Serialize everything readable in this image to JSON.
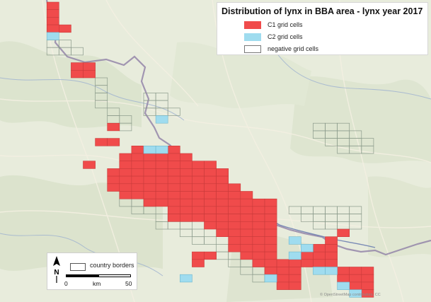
{
  "legend": {
    "title": "Distribution of lynx in BBA area - lynx year 2017",
    "items": [
      {
        "label": "C1 grid cells",
        "color": "#f04b4b"
      },
      {
        "label": "C2 grid cells",
        "color": "#9fdcef"
      },
      {
        "label": "negative grid cells",
        "color": "#ffffff"
      }
    ]
  },
  "map_labels": {
    "country_borders": "country borders",
    "scale_start": "0",
    "scale_unit": "km",
    "scale_end": "50",
    "north": "N",
    "attribution": "© OpenStreetMap contributors, CC"
  },
  "colors": {
    "c1": "#f04b4b",
    "c2": "#9fdcef",
    "negative_border": "#8a9a8a",
    "border_line": "#7a6f8f",
    "river": "#6d7fb0"
  },
  "grid": {
    "cell_size_note": "10x10 km grid cells",
    "c1_cells": [
      [
        2,
        0
      ],
      [
        2,
        1
      ],
      [
        2,
        2
      ],
      [
        2,
        3
      ],
      [
        3,
        3
      ],
      [
        4,
        8
      ],
      [
        5,
        8
      ],
      [
        4,
        9
      ],
      [
        5,
        9
      ],
      [
        7,
        16
      ],
      [
        6,
        18
      ],
      [
        7,
        18
      ],
      [
        5,
        21
      ],
      [
        9,
        19
      ],
      [
        10,
        19
      ],
      [
        11,
        19
      ],
      [
        12,
        19
      ],
      [
        8,
        20
      ],
      [
        9,
        20
      ],
      [
        10,
        20
      ],
      [
        11,
        20
      ],
      [
        12,
        20
      ],
      [
        13,
        20
      ],
      [
        8,
        21
      ],
      [
        9,
        21
      ],
      [
        10,
        21
      ],
      [
        11,
        21
      ],
      [
        12,
        21
      ],
      [
        13,
        21
      ],
      [
        14,
        21
      ],
      [
        15,
        21
      ],
      [
        7,
        22
      ],
      [
        8,
        22
      ],
      [
        9,
        22
      ],
      [
        10,
        22
      ],
      [
        11,
        22
      ],
      [
        12,
        22
      ],
      [
        13,
        22
      ],
      [
        14,
        22
      ],
      [
        15,
        22
      ],
      [
        16,
        22
      ],
      [
        7,
        23
      ],
      [
        8,
        23
      ],
      [
        9,
        23
      ],
      [
        10,
        23
      ],
      [
        11,
        23
      ],
      [
        12,
        23
      ],
      [
        13,
        23
      ],
      [
        14,
        23
      ],
      [
        15,
        23
      ],
      [
        16,
        23
      ],
      [
        7,
        24
      ],
      [
        8,
        24
      ],
      [
        9,
        24
      ],
      [
        10,
        24
      ],
      [
        11,
        24
      ],
      [
        12,
        24
      ],
      [
        13,
        24
      ],
      [
        14,
        24
      ],
      [
        15,
        24
      ],
      [
        16,
        24
      ],
      [
        17,
        24
      ],
      [
        8,
        25
      ],
      [
        9,
        25
      ],
      [
        10,
        25
      ],
      [
        11,
        25
      ],
      [
        12,
        25
      ],
      [
        13,
        25
      ],
      [
        14,
        25
      ],
      [
        15,
        25
      ],
      [
        16,
        25
      ],
      [
        17,
        25
      ],
      [
        18,
        25
      ],
      [
        10,
        26
      ],
      [
        11,
        26
      ],
      [
        12,
        26
      ],
      [
        13,
        26
      ],
      [
        14,
        26
      ],
      [
        15,
        26
      ],
      [
        16,
        26
      ],
      [
        17,
        26
      ],
      [
        18,
        26
      ],
      [
        19,
        26
      ],
      [
        20,
        26
      ],
      [
        12,
        27
      ],
      [
        13,
        27
      ],
      [
        14,
        27
      ],
      [
        15,
        27
      ],
      [
        16,
        27
      ],
      [
        17,
        27
      ],
      [
        18,
        27
      ],
      [
        19,
        27
      ],
      [
        20,
        27
      ],
      [
        12,
        28
      ],
      [
        13,
        28
      ],
      [
        14,
        28
      ],
      [
        15,
        28
      ],
      [
        16,
        28
      ],
      [
        17,
        28
      ],
      [
        18,
        28
      ],
      [
        19,
        28
      ],
      [
        20,
        28
      ],
      [
        15,
        29
      ],
      [
        16,
        29
      ],
      [
        17,
        29
      ],
      [
        18,
        29
      ],
      [
        19,
        29
      ],
      [
        20,
        29
      ],
      [
        16,
        30
      ],
      [
        17,
        30
      ],
      [
        18,
        30
      ],
      [
        19,
        30
      ],
      [
        20,
        30
      ],
      [
        17,
        31
      ],
      [
        18,
        31
      ],
      [
        19,
        31
      ],
      [
        20,
        31
      ],
      [
        17,
        32
      ],
      [
        18,
        32
      ],
      [
        19,
        32
      ],
      [
        20,
        32
      ],
      [
        18,
        33
      ],
      [
        19,
        33
      ],
      [
        20,
        33
      ],
      [
        14,
        33
      ],
      [
        15,
        33
      ],
      [
        14,
        34
      ],
      [
        19,
        34
      ],
      [
        20,
        34
      ],
      [
        20,
        35
      ],
      [
        21,
        34
      ],
      [
        21,
        35
      ],
      [
        21,
        36
      ],
      [
        21,
        37
      ],
      [
        22,
        34
      ],
      [
        22,
        35
      ],
      [
        22,
        36
      ],
      [
        22,
        37
      ],
      [
        23,
        33
      ],
      [
        24,
        33
      ],
      [
        25,
        33
      ],
      [
        23,
        34
      ],
      [
        24,
        34
      ],
      [
        25,
        34
      ],
      [
        24,
        32
      ],
      [
        25,
        32
      ],
      [
        25,
        31
      ],
      [
        26,
        30
      ],
      [
        26,
        35
      ],
      [
        27,
        35
      ],
      [
        28,
        35
      ],
      [
        26,
        36
      ],
      [
        27,
        36
      ],
      [
        28,
        36
      ],
      [
        27,
        37
      ],
      [
        28,
        37
      ],
      [
        28,
        38
      ]
    ],
    "c2_cells": [
      [
        2,
        4
      ],
      [
        11,
        15
      ],
      [
        10,
        19
      ],
      [
        11,
        19
      ],
      [
        22,
        31
      ],
      [
        23,
        32
      ],
      [
        22,
        33
      ],
      [
        20,
        36
      ],
      [
        24,
        35
      ],
      [
        25,
        35
      ],
      [
        26,
        37
      ],
      [
        27,
        38
      ],
      [
        13,
        36
      ]
    ],
    "negative_regions": [
      {
        "name": "north-border-strip",
        "cells": [
          [
            6,
            10
          ],
          [
            6,
            11
          ],
          [
            6,
            12
          ],
          [
            6,
            13
          ],
          [
            7,
            14
          ],
          [
            7,
            15
          ],
          [
            8,
            15
          ],
          [
            8,
            16
          ]
        ]
      },
      {
        "name": "central-north",
        "cells": [
          [
            10,
            12
          ],
          [
            11,
            12
          ],
          [
            10,
            13
          ],
          [
            11,
            13
          ],
          [
            10,
            14
          ],
          [
            11,
            14
          ],
          [
            12,
            14
          ]
        ]
      },
      {
        "name": "east-strip",
        "cells": [
          [
            24,
            16
          ],
          [
            25,
            16
          ],
          [
            26,
            16
          ],
          [
            24,
            17
          ],
          [
            25,
            17
          ],
          [
            26,
            17
          ],
          [
            27,
            17
          ],
          [
            25,
            18
          ],
          [
            26,
            18
          ],
          [
            27,
            18
          ],
          [
            28,
            18
          ],
          [
            26,
            19
          ],
          [
            27,
            19
          ],
          [
            28,
            19
          ]
        ]
      },
      {
        "name": "southeast-strip",
        "cells": [
          [
            22,
            27
          ],
          [
            23,
            27
          ],
          [
            24,
            27
          ],
          [
            25,
            27
          ],
          [
            26,
            27
          ],
          [
            27,
            27
          ],
          [
            23,
            28
          ],
          [
            24,
            28
          ],
          [
            25,
            28
          ],
          [
            26,
            28
          ],
          [
            27,
            28
          ],
          [
            24,
            29
          ],
          [
            25,
            29
          ],
          [
            26,
            29
          ],
          [
            27,
            29
          ]
        ]
      },
      {
        "name": "west-south",
        "cells": [
          [
            8,
            26
          ],
          [
            9,
            26
          ],
          [
            9,
            27
          ],
          [
            10,
            27
          ],
          [
            11,
            28
          ],
          [
            11,
            29
          ],
          [
            12,
            29
          ],
          [
            13,
            29
          ],
          [
            13,
            30
          ],
          [
            14,
            30
          ],
          [
            14,
            31
          ],
          [
            15,
            31
          ],
          [
            16,
            32
          ]
        ]
      },
      {
        "name": "south-edge",
        "cells": [
          [
            16,
            33
          ],
          [
            17,
            33
          ],
          [
            17,
            34
          ],
          [
            18,
            34
          ],
          [
            18,
            35
          ],
          [
            19,
            35
          ],
          [
            19,
            36
          ]
        ]
      },
      {
        "name": "north-west-column",
        "cells": [
          [
            2,
            5
          ],
          [
            3,
            5
          ],
          [
            2,
            6
          ],
          [
            3,
            6
          ],
          [
            4,
            6
          ]
        ]
      }
    ]
  }
}
